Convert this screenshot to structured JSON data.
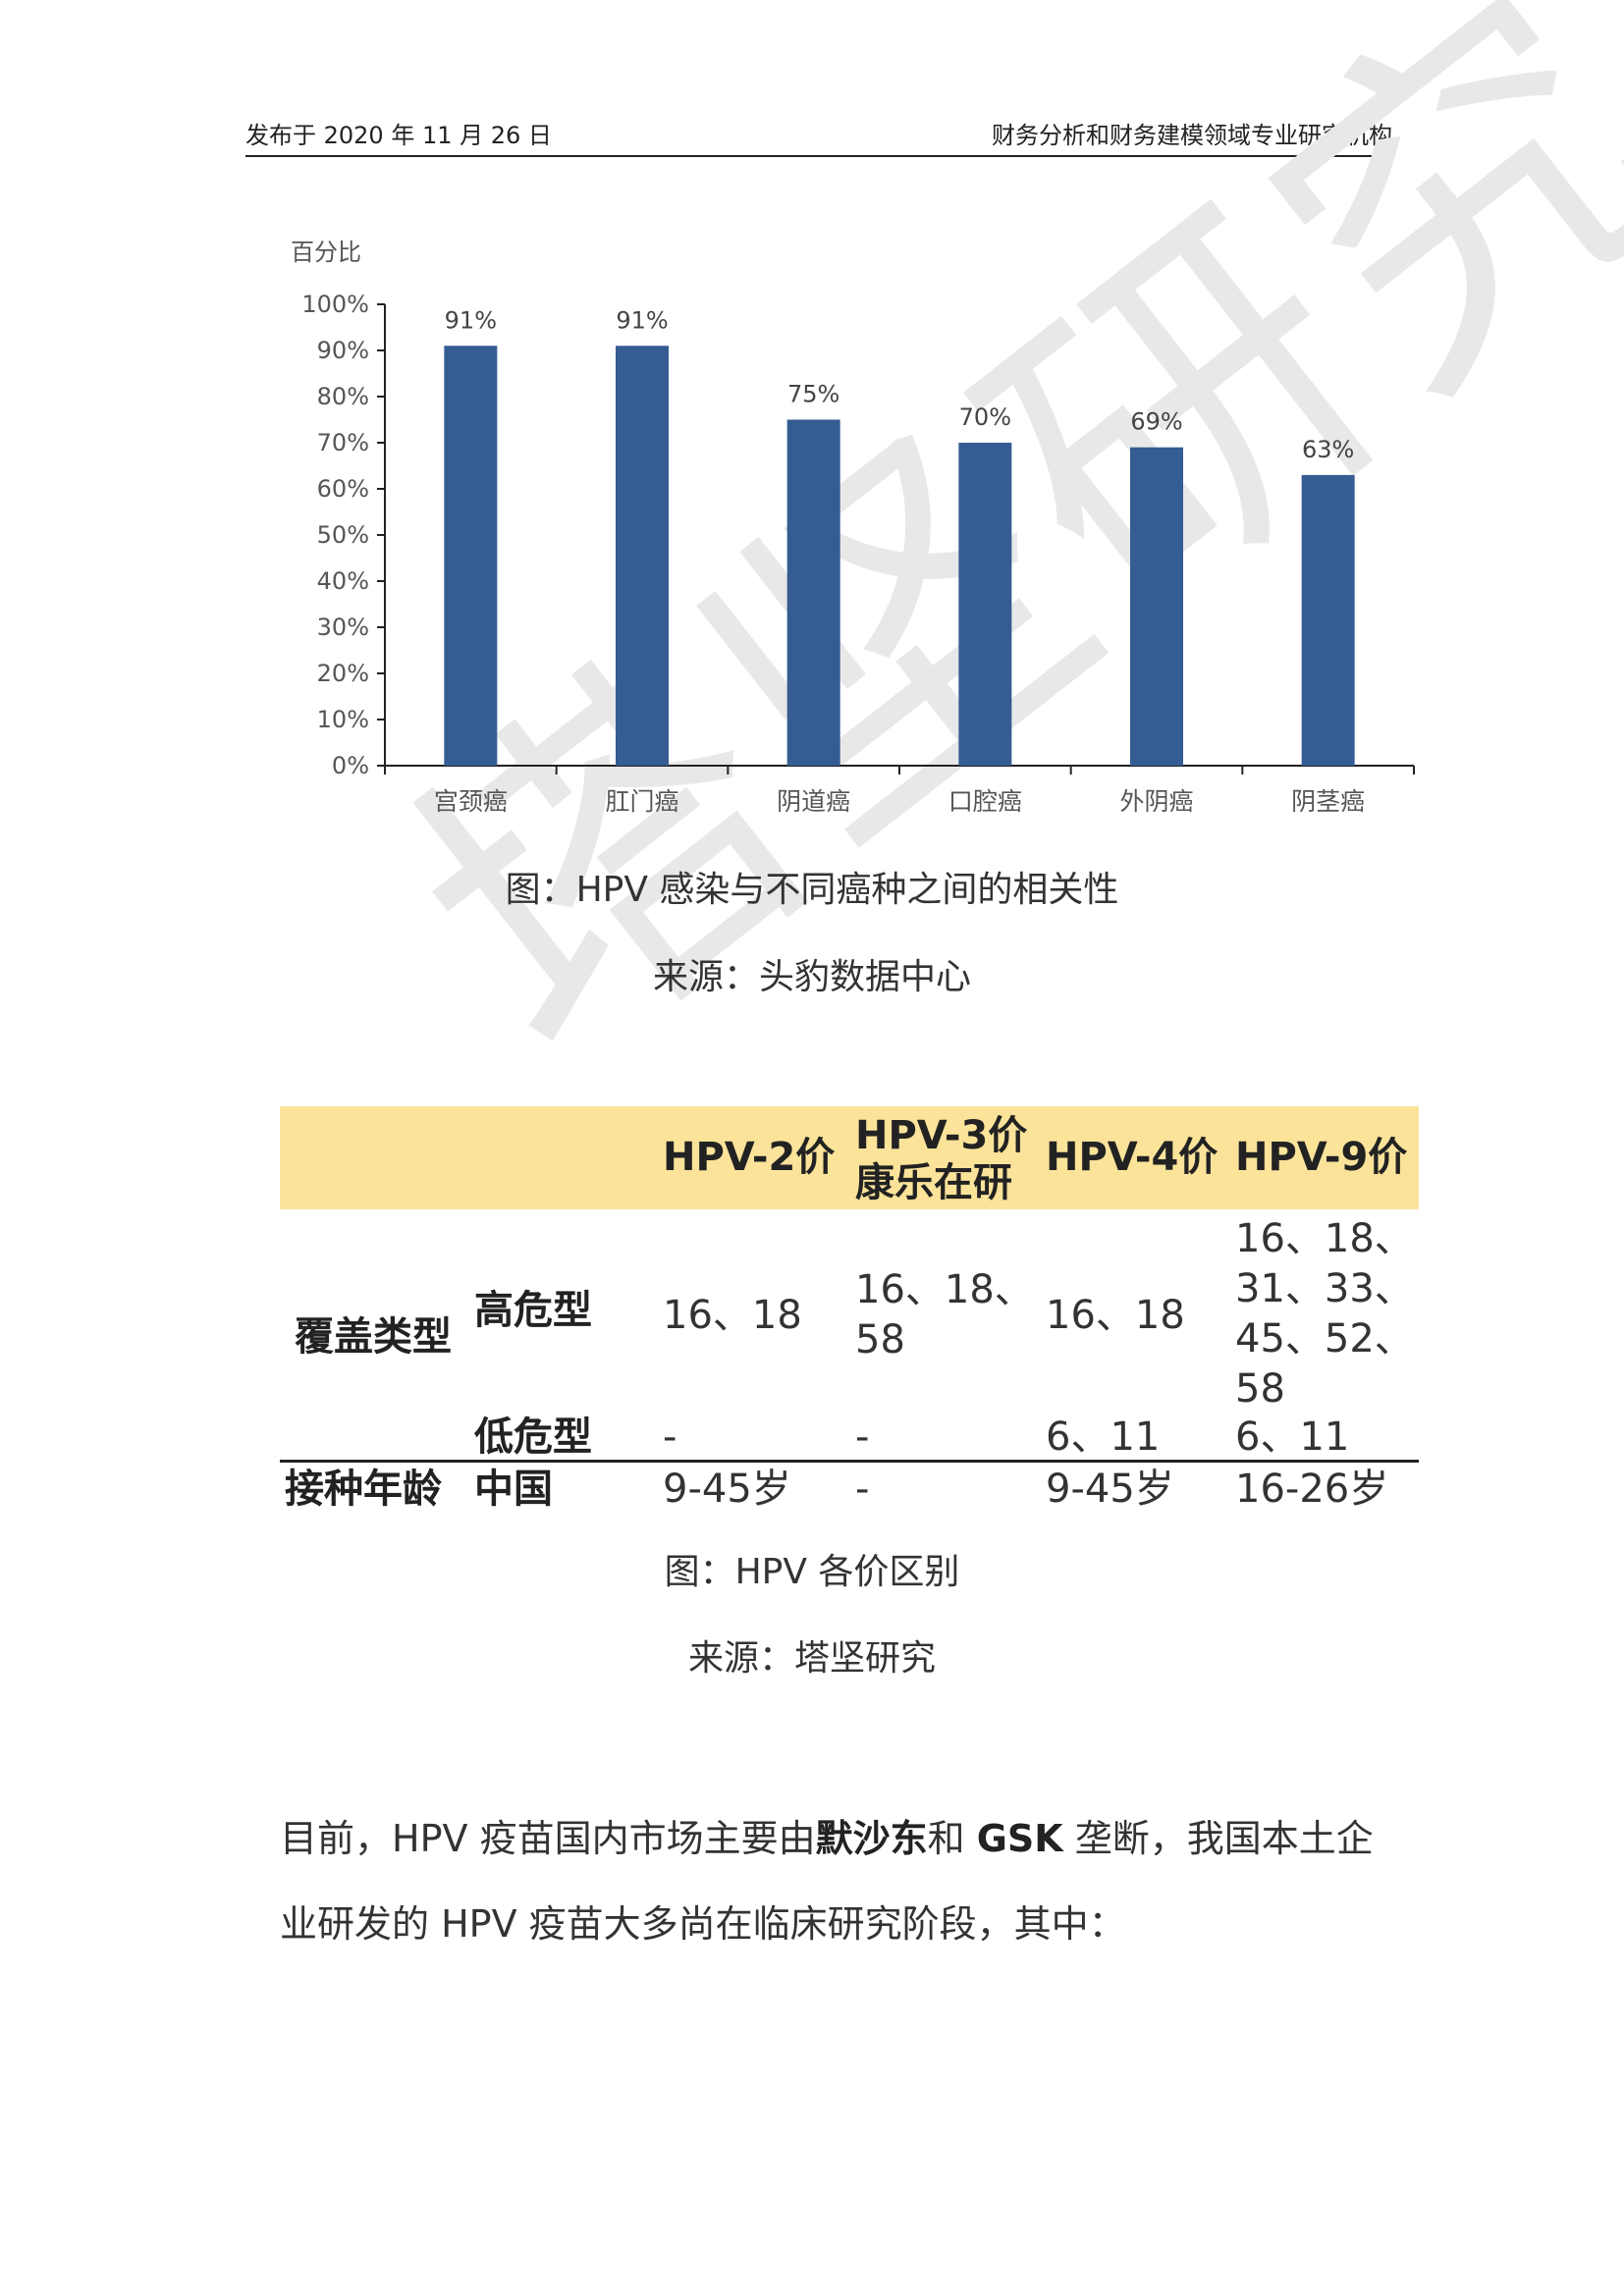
{
  "header": {
    "left": "发布于 2020 年 11 月 26 日",
    "right": "财务分析和财务建模领域专业研究机构"
  },
  "watermark": "塔坚研究",
  "chart_data": {
    "type": "bar",
    "ylabel": "百分比",
    "ylim": [
      0,
      100
    ],
    "y_ticks": [
      "0%",
      "10%",
      "20%",
      "30%",
      "40%",
      "50%",
      "60%",
      "70%",
      "80%",
      "90%",
      "100%"
    ],
    "categories": [
      "宫颈癌",
      "肛门癌",
      "阴道癌",
      "口腔癌",
      "外阴癌",
      "阴茎癌"
    ],
    "values": [
      91,
      91,
      75,
      70,
      69,
      63
    ],
    "data_labels": [
      "91%",
      "91%",
      "75%",
      "70%",
      "69%",
      "63%"
    ],
    "bar_color": "#355c93",
    "grid": false
  },
  "figure1": {
    "caption": "图：HPV 感染与不同癌种之间的相关性",
    "source": "来源：头豹数据中心"
  },
  "table": {
    "header": {
      "col1": "HPV-2价",
      "col2_line1": "HPV-3价",
      "col2_line2": "康乐在研",
      "col3": "HPV-4价",
      "col4": "HPV-9价"
    },
    "group_coverage": "覆盖类型",
    "row_high": {
      "label": "高危型",
      "col1": "16、18",
      "col2_line1": "16、18、",
      "col2_line2": "58",
      "col3": "16、18",
      "col4_line1": "16、18、",
      "col4_line2": "31、33、",
      "col4_line3": "45、52、",
      "col4_line4": "58"
    },
    "row_low": {
      "label": "低危型",
      "col1": "-",
      "col2": "-",
      "col3": "6、11",
      "col4": "6、11"
    },
    "group_age": "接种年龄",
    "row_age": {
      "label": "中国",
      "col1": "9-45岁",
      "col2": "-",
      "col3": "9-45岁",
      "col4": "16-26岁"
    },
    "band_color": "#fbe39a"
  },
  "figure2": {
    "caption": "图：HPV 各价区别",
    "source": "来源：塔坚研究"
  },
  "paragraph": {
    "p1_a": "目前，HPV 疫苗国内市场主要由",
    "p1_b": "默沙东",
    "p1_c": "和 ",
    "p1_d": "GSK",
    "p1_e": " 垄断，我国本土企",
    "p2": "业研发的 HPV 疫苗大多尚在临床研究阶段，其中："
  }
}
